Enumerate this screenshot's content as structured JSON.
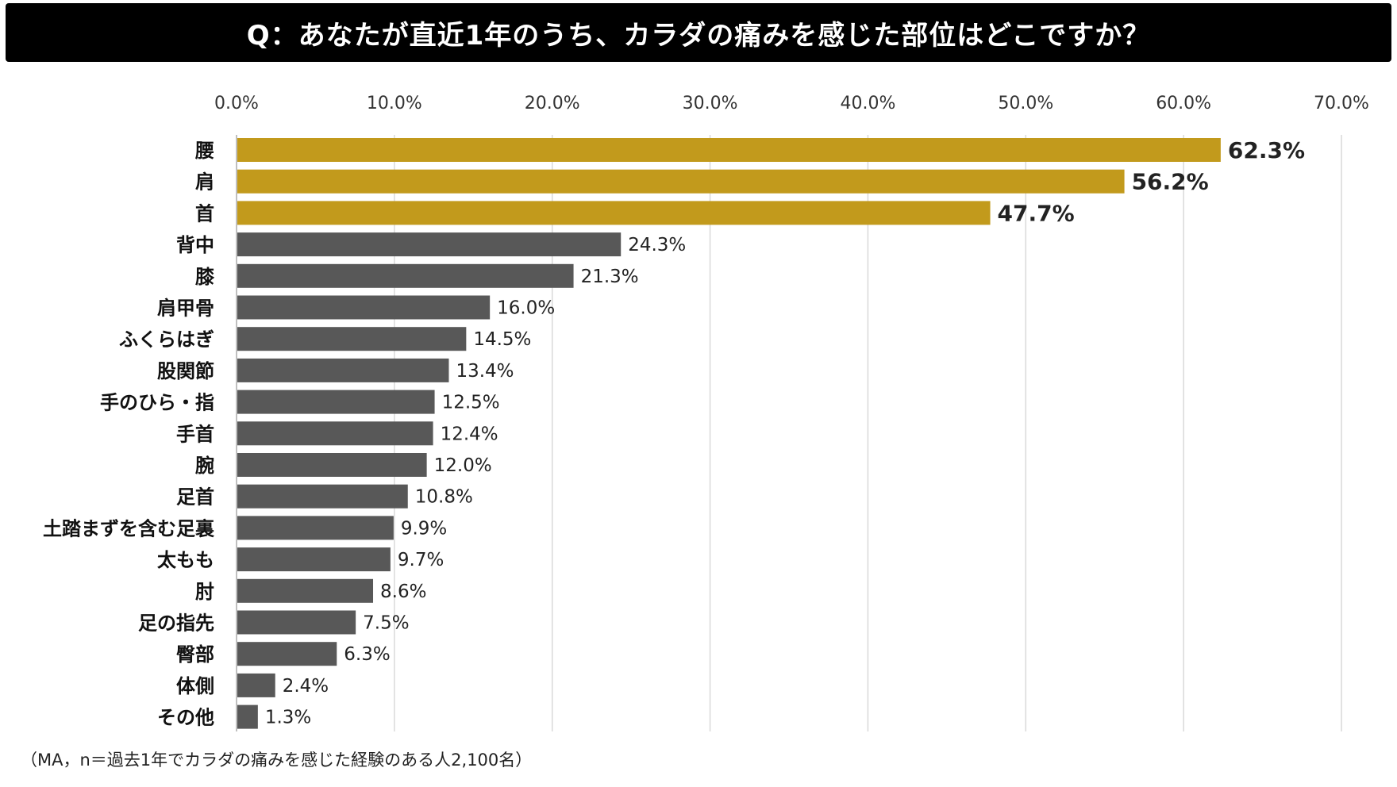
{
  "title": "Q：あなたが直近1年のうち、カラダの痛みを感じた部位はどこですか？",
  "footnote": "（MA，n＝過去1年でカラダの痛みを感じた経験のある人2,100名）",
  "colors": {
    "highlight": "#C29A1C",
    "default": "#585858",
    "grid": "#d9d9d9"
  },
  "chart_data": {
    "type": "bar",
    "orientation": "horizontal",
    "categories": [
      "腰",
      "肩",
      "首",
      "背中",
      "膝",
      "肩甲骨",
      "ふくらはぎ",
      "股関節",
      "手のひら・指",
      "手首",
      "腕",
      "足首",
      "土踏まずを含む足裏",
      "太もも",
      "肘",
      "足の指先",
      "臀部",
      "体側",
      "その他"
    ],
    "values": [
      62.3,
      56.2,
      47.7,
      24.3,
      21.3,
      16.0,
      14.5,
      13.4,
      12.5,
      12.4,
      12.0,
      10.8,
      9.9,
      9.7,
      8.6,
      7.5,
      6.3,
      2.4,
      1.3
    ],
    "value_labels": [
      "62.3%",
      "56.2%",
      "47.7%",
      "24.3%",
      "21.3%",
      "16.0%",
      "14.5%",
      "13.4%",
      "12.5%",
      "12.4%",
      "12.0%",
      "10.8%",
      "9.9%",
      "9.7%",
      "8.6%",
      "7.5%",
      "6.3%",
      "2.4%",
      "1.3%"
    ],
    "highlighted_count": 3,
    "xlim": [
      0,
      70
    ],
    "xticks": [
      0,
      10,
      20,
      30,
      40,
      50,
      60,
      70
    ],
    "xtick_labels": [
      "0.0%",
      "10.0%",
      "20.0%",
      "30.0%",
      "40.0%",
      "50.0%",
      "60.0%",
      "70.0%"
    ],
    "axis_position": "top",
    "grid": true
  }
}
